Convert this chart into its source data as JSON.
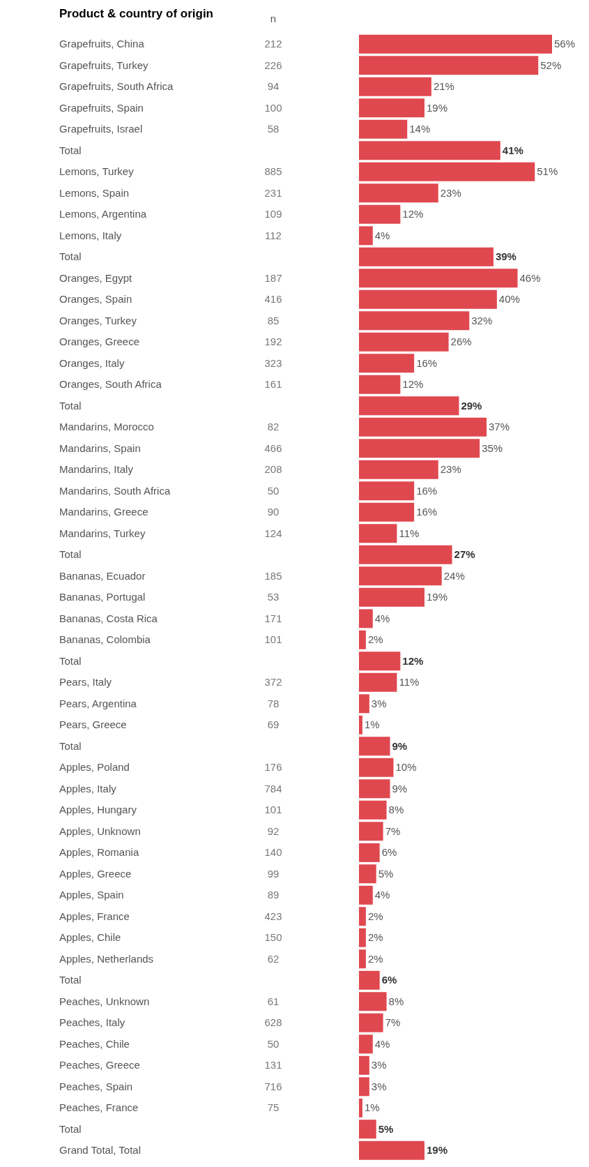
{
  "chart_data": {
    "type": "bar",
    "orientation": "horizontal",
    "title": "Product & country of origin",
    "legend": false,
    "grid": false,
    "color": "#e0484f",
    "categories": [
      "Grapefruits, China",
      "Grapefruits, Turkey",
      "Grapefruits, South Africa",
      "Grapefruits, Spain",
      "Grapefruits, Israel",
      "Total",
      "Lemons, Turkey",
      "Lemons, Spain",
      "Lemons, Argentina",
      "Lemons, Italy",
      "Total",
      "Oranges, Egypt",
      "Oranges, Spain",
      "Oranges, Turkey",
      "Oranges, Greece",
      "Oranges, Italy",
      "Oranges, South Africa",
      "Total",
      "Mandarins, Morocco",
      "Mandarins, Spain",
      "Mandarins, Italy",
      "Mandarins, South Africa",
      "Mandarins, Greece",
      "Mandarins, Turkey",
      "Total",
      "Bananas, Ecuador",
      "Bananas, Portugal",
      "Bananas, Costa Rica",
      "Bananas, Colombia",
      "Total",
      "Pears, Italy",
      "Pears, Argentina",
      "Pears, Greece",
      "Total",
      "Apples, Poland",
      "Apples, Italy",
      "Apples, Hungary",
      "Apples, Unknown",
      "Apples, Romania",
      "Apples, Greece",
      "Apples, Spain",
      "Apples, France",
      "Apples, Chile",
      "Apples, Netherlands",
      "Total",
      "Peaches, Unknown",
      "Peaches, Italy",
      "Peaches, Chile",
      "Peaches, Greece",
      "Peaches, Spain",
      "Peaches, France",
      "Total",
      "Grand Total, Total"
    ],
    "values": [
      56,
      52,
      21,
      19,
      14,
      41,
      51,
      23,
      12,
      4,
      39,
      46,
      40,
      32,
      26,
      16,
      12,
      29,
      37,
      35,
      23,
      16,
      16,
      11,
      27,
      24,
      19,
      4,
      2,
      12,
      11,
      3,
      1,
      9,
      10,
      9,
      8,
      7,
      6,
      5,
      4,
      2,
      2,
      2,
      6,
      8,
      7,
      4,
      3,
      3,
      1,
      5,
      19
    ],
    "value_labels": [
      "56%",
      "52%",
      "21%",
      "19%",
      "14%",
      "41%",
      "51%",
      "23%",
      "12%",
      "4%",
      "39%",
      "46%",
      "40%",
      "32%",
      "26%",
      "16%",
      "12%",
      "29%",
      "37%",
      "35%",
      "23%",
      "16%",
      "16%",
      "11%",
      "27%",
      "24%",
      "19%",
      "4%",
      "2%",
      "12%",
      "11%",
      "3%",
      "1%",
      "9%",
      "10%",
      "9%",
      "8%",
      "7%",
      "6%",
      "5%",
      "4%",
      "2%",
      "2%",
      "2%",
      "6%",
      "8%",
      "7%",
      "4%",
      "3%",
      "3%",
      "1%",
      "5%",
      "19%"
    ],
    "annotations": [
      "n",
      "212",
      "226",
      "94",
      "100",
      "58",
      "885",
      "231",
      "109",
      "112",
      "187",
      "416",
      "85",
      "192",
      "323",
      "161",
      "82",
      "466",
      "208",
      "50",
      "90",
      "124",
      "185",
      "53",
      "171",
      "101",
      "372",
      "78",
      "69",
      "176",
      "784",
      "101",
      "92",
      "140",
      "99",
      "89",
      "423",
      "150",
      "62",
      "61",
      "628",
      "50",
      "131",
      "716",
      "75"
    ]
  }
}
